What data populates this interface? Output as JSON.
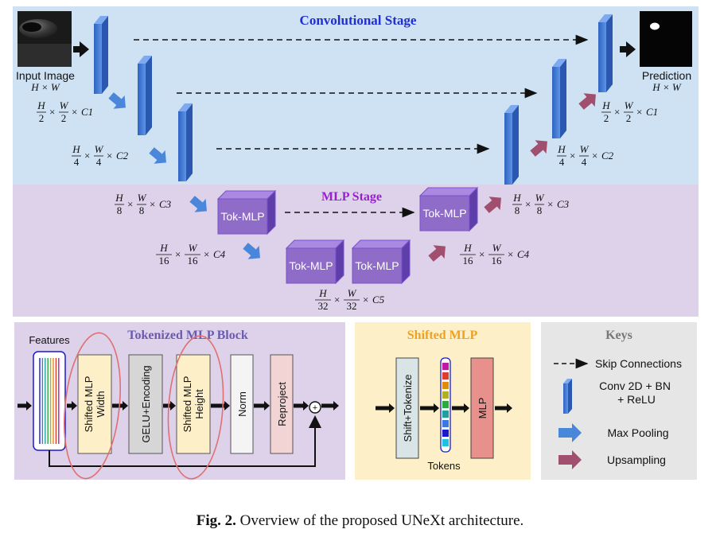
{
  "stages": {
    "conv": "Convolutional Stage",
    "mlp": "MLP Stage"
  },
  "input": {
    "label": "Input Image",
    "dims": "H × W"
  },
  "prediction": {
    "label": "Prediction",
    "dims": "H × W"
  },
  "encoder_dims": {
    "d1": [
      "H",
      "2",
      "W",
      "2",
      "C1"
    ],
    "d2": [
      "H",
      "4",
      "W",
      "4",
      "C2"
    ],
    "d3": [
      "H",
      "8",
      "W",
      "8",
      "C3"
    ],
    "d4": [
      "H",
      "16",
      "W",
      "16",
      "C4"
    ],
    "d5": [
      "H",
      "32",
      "W",
      "32",
      "C5"
    ]
  },
  "decoder_dims": {
    "d1": [
      "H",
      "2",
      "W",
      "2",
      "C1"
    ],
    "d2": [
      "H",
      "4",
      "W",
      "4",
      "C2"
    ],
    "d3": [
      "H",
      "8",
      "W",
      "8",
      "C3"
    ],
    "d4": [
      "H",
      "16",
      "W",
      "16",
      "C4"
    ]
  },
  "tokmlp_label": "Tok-MLP",
  "tokenized_block": {
    "title": "Tokenized MLP Block",
    "features": "Features",
    "blocks": [
      "Shifted MLP\nWidth",
      "GELU+Encoding",
      "Shifted MLP\nHeight",
      "Norm",
      "Reproject"
    ],
    "plus": "+"
  },
  "shifted_mlp": {
    "title": "Shifted MLP",
    "shift": "Shift+Tokenize",
    "mlp": "MLP",
    "tokens": "Tokens"
  },
  "keys": {
    "title": "Keys",
    "skip": "Skip Connections",
    "conv": "Conv 2D + BN\n+ ReLU",
    "pool": "Max Pooling",
    "up": "Upsampling"
  },
  "caption": {
    "bold": "Fig. 2.",
    "text": " Overview of the proposed UNeXt architecture."
  },
  "colors": {
    "conv_bg": "#cfe2f3",
    "mlp_bg": "#ddd2ea",
    "conv_block": "#4a7fd4",
    "tok": "#8e6cc8",
    "pool_arrow": "#4a86d9",
    "up_arrow": "#a0506e",
    "stage_title_conv": "#1f2fcf",
    "stage_title_mlp": "#9a1fd0"
  }
}
